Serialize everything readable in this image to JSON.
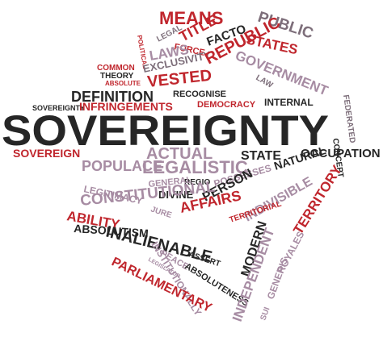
{
  "word_cloud": {
    "main_word": "SOVEREIGNTY",
    "words": [
      {
        "id": "means",
        "text": "MEANS"
      },
      {
        "id": "public",
        "text": "PUBLIC"
      },
      {
        "id": "title",
        "text": "TITLE"
      },
      {
        "id": "legal",
        "text": "LEGAL"
      },
      {
        "id": "force",
        "text": "FORCE"
      },
      {
        "id": "facto",
        "text": "FACTO"
      },
      {
        "id": "political",
        "text": "POLITICAL"
      },
      {
        "id": "states",
        "text": "STATES"
      },
      {
        "id": "laws",
        "text": "LAWS"
      },
      {
        "id": "government",
        "text": "GOVERNMENT"
      },
      {
        "id": "exclusivity",
        "text": "EXCLUSIVITY"
      },
      {
        "id": "republic",
        "text": "REPUBLIC"
      },
      {
        "id": "common",
        "text": "COMMON"
      },
      {
        "id": "theory",
        "text": "THEORY"
      },
      {
        "id": "absolute",
        "text": "ABSOLUTE"
      },
      {
        "id": "law",
        "text": "LAW"
      },
      {
        "id": "vested",
        "text": "VESTED"
      },
      {
        "id": "definition",
        "text": "DEFINITION"
      },
      {
        "id": "recognise",
        "text": "RECOGNISE"
      },
      {
        "id": "sovereignty-small",
        "text": "SOVEREIGNTY"
      },
      {
        "id": "infringements",
        "text": "INFRINGEMENTS"
      },
      {
        "id": "democracy",
        "text": "DEMOCRACY"
      },
      {
        "id": "internal",
        "text": "INTERNAL"
      },
      {
        "id": "federated",
        "text": "FEDERATED"
      },
      {
        "id": "concept",
        "text": "CONCEPT"
      },
      {
        "id": "sovereign",
        "text": "SOVEREIGN"
      },
      {
        "id": "actual",
        "text": "ACTUAL"
      },
      {
        "id": "state",
        "text": "STATE"
      },
      {
        "id": "occupation",
        "text": "OCCUPATION"
      },
      {
        "id": "populace",
        "text": "POPULACE"
      },
      {
        "id": "legalistic",
        "text": "LEGALISTIC"
      },
      {
        "id": "natural",
        "text": "NATURAL"
      },
      {
        "id": "regio",
        "text": "REGIO"
      },
      {
        "id": "general",
        "text": "GENERAL"
      },
      {
        "id": "possesses",
        "text": "POSSESSES"
      },
      {
        "id": "divine",
        "text": "DIVINE"
      },
      {
        "id": "person",
        "text": "PERSON"
      },
      {
        "id": "legitimacy",
        "text": "LEGITIMACY"
      },
      {
        "id": "jure",
        "text": "JURE"
      },
      {
        "id": "constitutional",
        "text": "CONSTITUTIONAL"
      },
      {
        "id": "affairs",
        "text": "AFFAIRS"
      },
      {
        "id": "indivisible",
        "text": "INDIVISIBLE"
      },
      {
        "id": "territory",
        "text": "TERRITORY"
      },
      {
        "id": "ability",
        "text": "ABILITY"
      },
      {
        "id": "territorial",
        "text": "TERRITORIAL"
      },
      {
        "id": "inalienable",
        "text": "INALIENABLE"
      },
      {
        "id": "absolutism",
        "text": "ABSOLUTISM"
      },
      {
        "id": "royales",
        "text": "ROYALES"
      },
      {
        "id": "generis",
        "text": "GENERIS"
      },
      {
        "id": "modern",
        "text": "MODERN"
      },
      {
        "id": "assert",
        "text": "ASSERT"
      },
      {
        "id": "institutionally",
        "text": "INSTITUTIONALLY"
      },
      {
        "id": "parliamentary",
        "text": "PARLIAMENTARY"
      },
      {
        "id": "legislator",
        "text": "LEGISLATOR"
      },
      {
        "id": "peace",
        "text": "PEACE"
      },
      {
        "id": "absoluteness",
        "text": "ABSOLUTENESS"
      },
      {
        "id": "independent",
        "text": "INDEPENDENT"
      },
      {
        "id": "sui",
        "text": "SUI"
      }
    ]
  },
  "colors": {
    "red": "#c0262d",
    "dark": "#262626",
    "mauve": "#a78ca3",
    "gray": "#7d6e7a",
    "background": "#ffffff"
  }
}
